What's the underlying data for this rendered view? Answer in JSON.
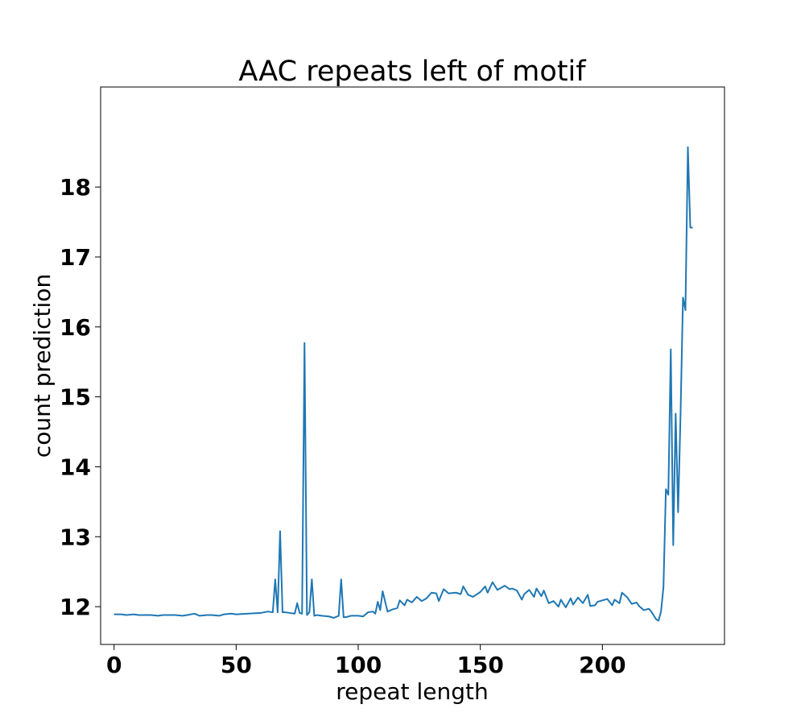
{
  "chart_data": {
    "type": "line",
    "title": "AAC repeats left of motif",
    "xlabel": "repeat length",
    "ylabel": "count prediction",
    "xlim": [
      -5.5,
      250
    ],
    "ylim": [
      11.46,
      19.43
    ],
    "xticks": [
      0,
      50,
      100,
      150,
      200
    ],
    "yticks": [
      12,
      13,
      14,
      15,
      16,
      17,
      18
    ],
    "grid": false,
    "legend": "none",
    "series": [
      {
        "color": "#1f77b4",
        "x": [
          0,
          3,
          5,
          8,
          10,
          12,
          15,
          18,
          20,
          22,
          25,
          28,
          30,
          33,
          35,
          38,
          40,
          43,
          45,
          48,
          50,
          55,
          60,
          63,
          65,
          66,
          67,
          68,
          69,
          70,
          72,
          74,
          75,
          76,
          77,
          78,
          79,
          80,
          81,
          82,
          83,
          85,
          88,
          90,
          92,
          93,
          94,
          95,
          97,
          100,
          102,
          104,
          106,
          107,
          108,
          109,
          110,
          112,
          114,
          116,
          117,
          119,
          120,
          122,
          124,
          126,
          128,
          130,
          132,
          133,
          135,
          137,
          140,
          142,
          143,
          145,
          147,
          150,
          152,
          153,
          155,
          157,
          160,
          162,
          163,
          165,
          167,
          168,
          170,
          172,
          173,
          175,
          176,
          178,
          180,
          182,
          183,
          185,
          187,
          188,
          190,
          192,
          194,
          195,
          197,
          198,
          200,
          202,
          204,
          205,
          207,
          208,
          210,
          212,
          214,
          215,
          217,
          219,
          220,
          222,
          223,
          224,
          225,
          226,
          227,
          228,
          229,
          230,
          231,
          232,
          233,
          234,
          235,
          236,
          237
        ],
        "y": [
          11.89,
          11.89,
          11.88,
          11.89,
          11.88,
          11.88,
          11.88,
          11.87,
          11.88,
          11.88,
          11.88,
          11.87,
          11.88,
          11.9,
          11.87,
          11.88,
          11.88,
          11.87,
          11.89,
          11.9,
          11.89,
          11.9,
          11.91,
          11.93,
          11.92,
          12.39,
          11.92,
          13.08,
          11.92,
          11.92,
          11.91,
          11.9,
          12.05,
          11.91,
          11.9,
          15.77,
          11.88,
          11.92,
          12.39,
          11.87,
          11.88,
          11.87,
          11.86,
          11.84,
          11.87,
          12.39,
          11.85,
          11.85,
          11.87,
          11.87,
          11.86,
          11.92,
          11.93,
          11.9,
          12.07,
          11.95,
          12.22,
          11.93,
          11.96,
          11.98,
          12.09,
          12.02,
          12.1,
          12.06,
          12.14,
          12.08,
          12.12,
          12.2,
          12.19,
          12.08,
          12.25,
          12.19,
          12.2,
          12.18,
          12.29,
          12.17,
          12.14,
          12.21,
          12.29,
          12.2,
          12.35,
          12.24,
          12.3,
          12.25,
          12.26,
          12.23,
          12.1,
          12.18,
          12.24,
          12.14,
          12.26,
          12.15,
          12.23,
          12.05,
          12.08,
          12.0,
          12.1,
          11.99,
          12.12,
          12.03,
          12.13,
          12.05,
          12.17,
          12.01,
          12.02,
          12.07,
          12.09,
          12.11,
          12.02,
          12.1,
          12.05,
          12.2,
          12.14,
          12.04,
          12.06,
          12.01,
          11.95,
          11.97,
          11.93,
          11.82,
          11.8,
          11.93,
          12.28,
          13.68,
          13.6,
          15.68,
          12.88,
          14.76,
          13.35,
          14.75,
          16.42,
          16.24,
          18.57,
          17.42,
          17.42
        ]
      }
    ]
  }
}
